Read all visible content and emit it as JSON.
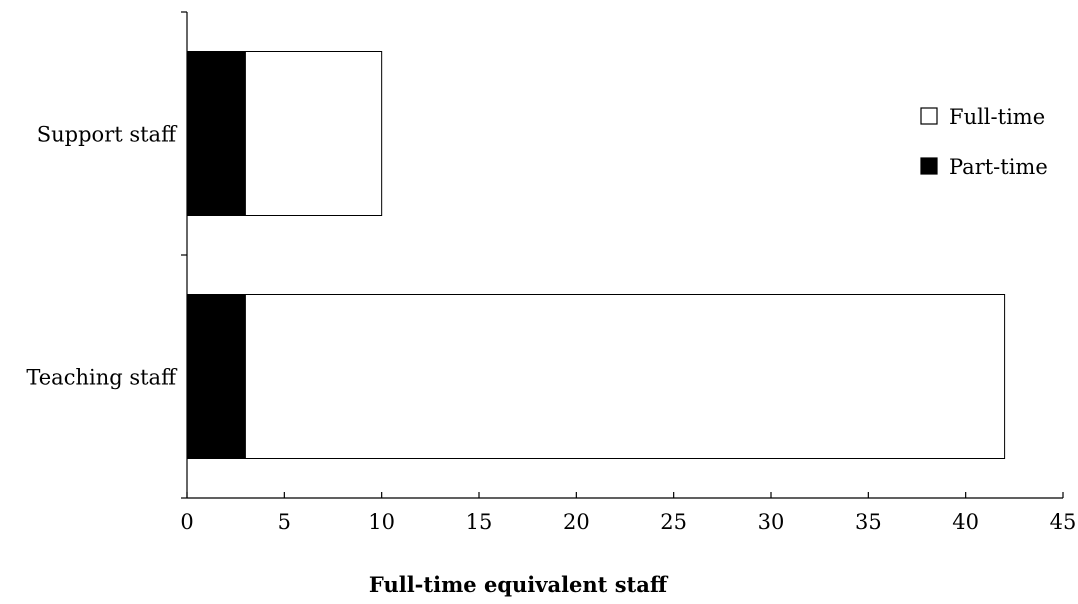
{
  "chart_data": {
    "type": "bar",
    "orientation": "horizontal",
    "stacked": true,
    "categories": [
      "Support staff",
      "Teaching staff"
    ],
    "series": [
      {
        "name": "Part-time",
        "values": [
          3,
          3
        ],
        "color": "#000000"
      },
      {
        "name": "Full-time",
        "values": [
          7,
          39
        ],
        "color": "#ffffff"
      }
    ],
    "xlabel": "Full-time equivalent staff",
    "ylabel": "",
    "xlim": [
      0,
      45
    ],
    "xticks": [
      0,
      5,
      10,
      15,
      20,
      25,
      30,
      35,
      40,
      45
    ],
    "grid": false,
    "legend": {
      "placement": "right",
      "entries": [
        "Full-time",
        "Part-time"
      ]
    }
  }
}
